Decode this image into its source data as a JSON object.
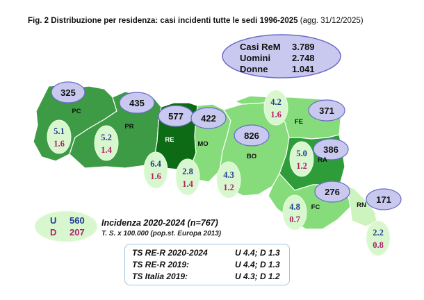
{
  "title": {
    "bold": "Fig. 2  Distribuzione per  residenza: casi incidenti tutte le sedi 1996-2025",
    "normal": " (agg. 31/12/2025)"
  },
  "summary": {
    "rows": [
      {
        "label": "Casi ReM",
        "value": "3.789"
      },
      {
        "label": "Uomini",
        "value": "2.748"
      },
      {
        "label": "Donne",
        "value": "1.041"
      }
    ]
  },
  "provinces": [
    {
      "code": "PC",
      "cases": "325",
      "u": "5.1",
      "d": "1.6",
      "color": "#3d9a45"
    },
    {
      "code": "PR",
      "cases": "435",
      "u": "5.2",
      "d": "1.4",
      "color": "#3d9a45"
    },
    {
      "code": "RE",
      "cases": "577",
      "u": "6.4",
      "d": "1.6",
      "color": "#0d6b16"
    },
    {
      "code": "MO",
      "cases": "422",
      "u": "2.8",
      "d": "1.4",
      "color": "#86dc7a"
    },
    {
      "code": "BO",
      "cases": "826",
      "u": "4.3",
      "d": "1.2",
      "color": "#86dc7a"
    },
    {
      "code": "FE",
      "cases": "371",
      "u": "4.2",
      "d": "1.6",
      "color": "#86dc7a"
    },
    {
      "code": "RA",
      "cases": "386",
      "u": "5.0",
      "d": "1.2",
      "color": "#2f9c3a"
    },
    {
      "code": "FC",
      "cases": "276",
      "u": "4.8",
      "d": "0.7",
      "color": "#86dc7a"
    },
    {
      "code": "RN",
      "cases": "171",
      "u": "2.2",
      "d": "0.8",
      "color": "#cdf3bf"
    }
  ],
  "legend": {
    "u_label": "U",
    "u_value": "560",
    "d_label": "D",
    "d_value": "207"
  },
  "incidence": {
    "title": "Incidenza 2020-2024 (n=767)",
    "subtitle": "T. S. x 100.000 (pop.st. Europa 2013)"
  },
  "standard_rates": [
    {
      "label": "TS RE-R 2020-2024",
      "value": "U 4.4; D 1.3"
    },
    {
      "label": "TS RE-R 2019:",
      "value": "U 4.4; D 1.3"
    },
    {
      "label": "TS Italia 2019:",
      "value": "U 4.3; D 1.2"
    }
  ],
  "colors": {
    "bubble_fill": "#c9c9f0",
    "bubble_stroke": "#6a6ac8",
    "rate_fill": "#d9f7cf",
    "male_text": "#1f3b8f",
    "female_text": "#b0206a"
  }
}
